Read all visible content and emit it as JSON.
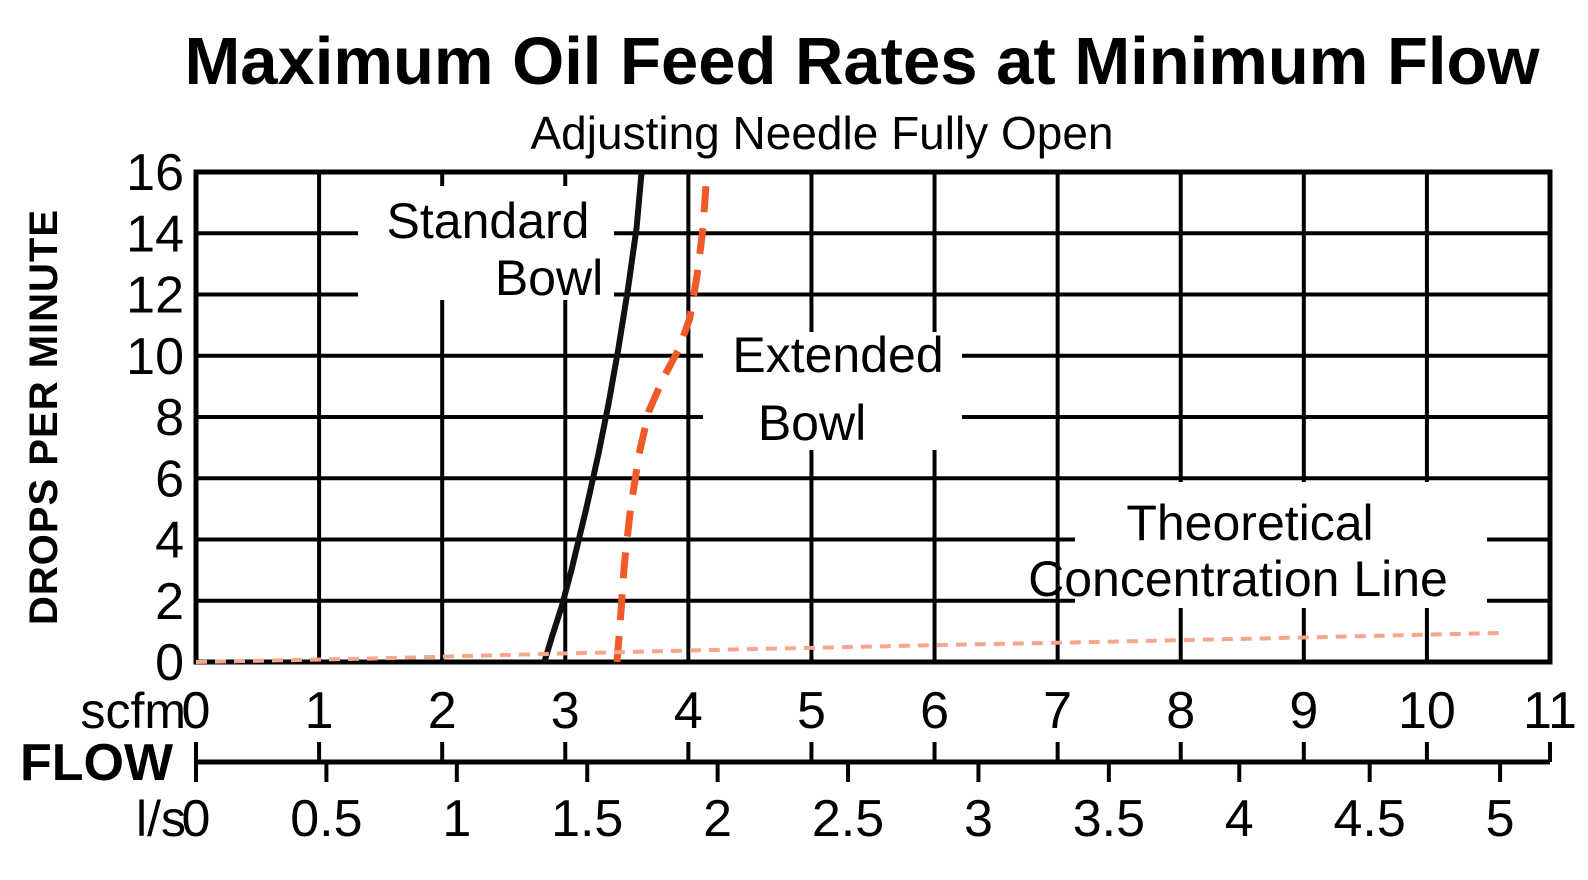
{
  "title": "Maximum Oil Feed Rates at Minimum Flow",
  "subtitle": "Adjusting Needle Fully Open",
  "y_axis": {
    "label": "DROPS PER MINUTE",
    "ticks": [
      "0",
      "2",
      "4",
      "6",
      "8",
      "10",
      "12",
      "14",
      "16"
    ],
    "max": 16
  },
  "x_axis": {
    "unit_top": "scfm",
    "axis_label": "FLOW",
    "unit_bottom": "l/s",
    "scfm_ticks": [
      "0",
      "1",
      "2",
      "3",
      "4",
      "5",
      "6",
      "7",
      "8",
      "9",
      "10",
      "11"
    ],
    "ls_ticks": [
      "0",
      "0.5",
      "1",
      "1.5",
      "2",
      "2.5",
      "3",
      "3.5",
      "4",
      "4.5",
      "5"
    ],
    "scfm_per_ls": 2.1189,
    "scfm_max": 11
  },
  "colors": {
    "background": "#ffffff",
    "axis_and_grid": "#000000",
    "standard_bowl_line": "#111111",
    "extended_bowl_line": "#ef5a28",
    "theoretical_line": "#f4a78d"
  },
  "chart_data": {
    "type": "line",
    "title": "Maximum Oil Feed Rates at Minimum Flow",
    "subtitle": "Adjusting Needle Fully Open",
    "xlabel": "FLOW (scfm top scale 0-11, l/s bottom scale 0-5)",
    "ylabel": "DROPS PER MINUTE",
    "xlim": [
      0,
      11
    ],
    "ylim": [
      0,
      16
    ],
    "grid": true,
    "series": [
      {
        "id": "standard-bowl",
        "name": "Standard Bowl",
        "label_lines": [
          "Standard",
          "Bowl"
        ],
        "style": "solid",
        "color": "#111111",
        "points": [
          [
            2.83,
            0
          ],
          [
            2.89,
            0.8
          ],
          [
            2.97,
            1.8
          ],
          [
            3.05,
            3.0
          ],
          [
            3.17,
            5.0
          ],
          [
            3.27,
            6.8
          ],
          [
            3.35,
            8.4
          ],
          [
            3.43,
            10.2
          ],
          [
            3.51,
            12.2
          ],
          [
            3.58,
            14.2
          ],
          [
            3.62,
            16
          ]
        ]
      },
      {
        "id": "extended-bowl",
        "name": "Extended Bowl",
        "label_lines": [
          "Extended",
          "Bowl"
        ],
        "style": "dashed",
        "color": "#ef5a28",
        "points": [
          [
            3.42,
            0
          ],
          [
            3.45,
            1.5
          ],
          [
            3.48,
            3.2
          ],
          [
            3.53,
            5.0
          ],
          [
            3.6,
            6.8
          ],
          [
            3.68,
            8.2
          ],
          [
            3.8,
            9.3
          ],
          [
            3.92,
            10.2
          ],
          [
            4.01,
            11.2
          ],
          [
            4.07,
            12.6
          ],
          [
            4.12,
            14.2
          ],
          [
            4.15,
            16
          ]
        ]
      },
      {
        "id": "theoretical",
        "name": "Theoretical Concentration Line",
        "label_lines": [
          "Theoretical",
          "Concentration Line"
        ],
        "style": "fine-dashed",
        "color": "#f4a78d",
        "points": [
          [
            0,
            0
          ],
          [
            1.5,
            0.12
          ],
          [
            3,
            0.28
          ],
          [
            4.5,
            0.42
          ],
          [
            6,
            0.55
          ],
          [
            7.5,
            0.67
          ],
          [
            9,
            0.8
          ],
          [
            10.6,
            0.95
          ]
        ]
      }
    ]
  }
}
